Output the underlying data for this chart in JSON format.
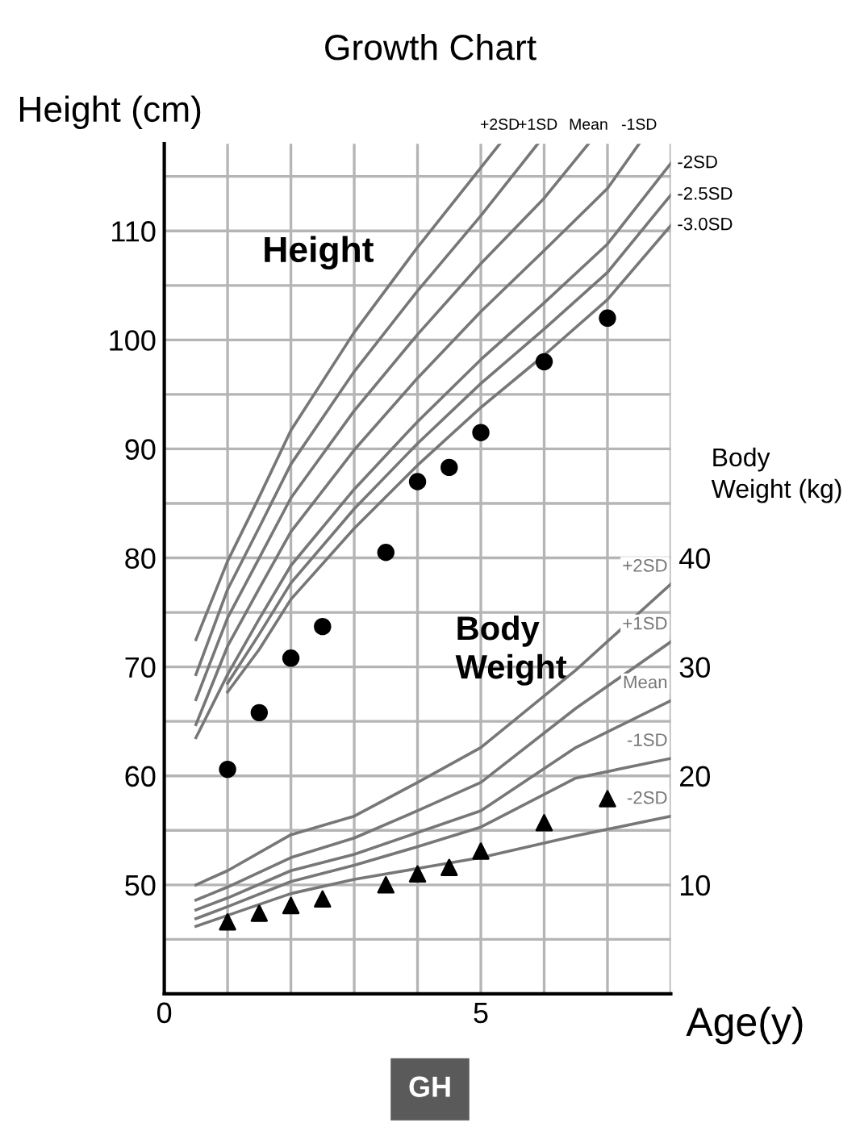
{
  "chart_data": {
    "type": "line",
    "title": "Growth Chart",
    "xlabel": "Age(y)",
    "ylabel": "Height (cm)",
    "y2label": "Body Weight (kg)",
    "annotations": [
      "Height",
      "Body Weight",
      "GH"
    ],
    "xlim": [
      0,
      8
    ],
    "xticks": [
      0,
      {
        "value": 1,
        "label": null
      },
      {
        "value": 2,
        "label": null
      },
      {
        "value": 3,
        "label": null
      },
      {
        "value": 4,
        "label": null
      },
      5,
      {
        "value": 6,
        "label": null
      },
      {
        "value": 7,
        "label": null
      },
      {
        "value": 8,
        "label": null
      }
    ],
    "ylim": [
      40,
      118
    ],
    "yticks": [
      {
        "value": 45,
        "label": null
      },
      50,
      {
        "value": 55,
        "label": null
      },
      60,
      {
        "value": 65,
        "label": null
      },
      70,
      {
        "value": 75,
        "label": null
      },
      80,
      {
        "value": 85,
        "label": null
      },
      90,
      {
        "value": 95,
        "label": null
      },
      100,
      {
        "value": 105,
        "label": null
      },
      110,
      {
        "value": 115,
        "label": null
      }
    ],
    "y2lim": [
      0,
      78
    ],
    "y2ticks": [
      10,
      20,
      30,
      40
    ],
    "grid": true,
    "series": [
      {
        "name": "+2SD",
        "color": "#777777",
        "x": [
          0.5,
          1,
          1.5,
          2,
          3,
          4,
          5,
          5.3
        ],
        "values": [
          72.5,
          79.7,
          85.6,
          91.7,
          100.7,
          108.5,
          115.8,
          118
        ]
      },
      {
        "name": "+1SD",
        "color": "#777777",
        "x": [
          0.5,
          1,
          1.5,
          2,
          3,
          4,
          5,
          5.9
        ],
        "values": [
          69.3,
          77.1,
          82.8,
          88.6,
          97.1,
          104.5,
          111.4,
          118
        ]
      },
      {
        "name": "Mean",
        "color": "#777777",
        "x": [
          0.5,
          1,
          1.5,
          2,
          3,
          4,
          5,
          6,
          6.7
        ],
        "values": [
          67,
          74.5,
          80,
          85.5,
          93.5,
          100.5,
          107,
          113,
          118
        ]
      },
      {
        "name": "-1SD",
        "color": "#777777",
        "x": [
          0.5,
          1,
          1.5,
          2,
          3,
          4,
          5,
          6,
          7,
          7.5
        ],
        "values": [
          64.7,
          71.9,
          77.2,
          82.4,
          89.9,
          96.5,
          102.6,
          108.2,
          113.9,
          118
        ]
      },
      {
        "name": "-2SD",
        "color": "#777777",
        "x": [
          0.5,
          1,
          1.5,
          2,
          3,
          4,
          5,
          6,
          7,
          8
        ],
        "values": [
          63.5,
          69.3,
          74.4,
          79.3,
          86.3,
          92.5,
          98.2,
          103.4,
          108.8,
          116.2
        ]
      },
      {
        "name": "-2.5SD",
        "color": "#777777",
        "x": [
          1,
          1.5,
          2,
          3,
          4,
          5,
          6,
          7,
          8
        ],
        "values": [
          68.5,
          73,
          77.7,
          84.5,
          90.5,
          96,
          101,
          106.2,
          113.3
        ]
      },
      {
        "name": "-3.0SD",
        "color": "#777777",
        "x": [
          1,
          1.5,
          2,
          3,
          4,
          5,
          6,
          7,
          8
        ],
        "values": [
          67.7,
          71.6,
          76.2,
          82.7,
          88.5,
          93.8,
          98.6,
          103.7,
          110.5
        ]
      },
      {
        "name": "+2SD",
        "color": "#777777",
        "axis": "y2",
        "x": [
          0.5,
          1,
          2,
          3,
          4,
          5,
          6.5,
          8
        ],
        "values": [
          10,
          11.3,
          14.6,
          16.3,
          19.4,
          22.6,
          29.7,
          37.6
        ]
      },
      {
        "name": "+1SD",
        "color": "#777777",
        "axis": "y2",
        "x": [
          0.5,
          1,
          2,
          3,
          4,
          5,
          6.5,
          8
        ],
        "values": [
          8.6,
          9.8,
          12.5,
          14.3,
          16.8,
          19.4,
          26.2,
          32.3
        ]
      },
      {
        "name": "Mean",
        "color": "#777777",
        "axis": "y2",
        "x": [
          0.5,
          1,
          2,
          3,
          4,
          5,
          6.5,
          8
        ],
        "values": [
          7.7,
          8.8,
          11.3,
          12.8,
          14.8,
          16.8,
          22.6,
          26.9
        ]
      },
      {
        "name": "-1SD",
        "color": "#777777",
        "axis": "y2",
        "x": [
          0.5,
          1,
          2,
          3,
          4,
          5,
          6.5,
          8
        ],
        "values": [
          6.9,
          8,
          10.3,
          11.8,
          13.5,
          15.3,
          19.8,
          21.6
        ]
      },
      {
        "name": "-2SD",
        "color": "#777777",
        "axis": "y2",
        "x": [
          0.5,
          1,
          2,
          3,
          4,
          5,
          6.5,
          8
        ],
        "values": [
          6.2,
          7.2,
          9.2,
          10.5,
          11.5,
          12.5,
          14.5,
          16.3
        ]
      },
      {
        "type": "scatter",
        "color": "#000000",
        "marker": "circle",
        "x": [
          1,
          1.5,
          2,
          2.5,
          3.5,
          4,
          4.5,
          5,
          6,
          7
        ],
        "values": [
          60.6,
          65.8,
          70.8,
          73.7,
          80.5,
          87,
          88.3,
          91.5,
          98,
          102
        ]
      },
      {
        "type": "scatter",
        "color": "#000000",
        "marker": "triangle",
        "axis": "y2",
        "x": [
          1,
          1.5,
          2,
          2.5,
          3.5,
          4,
          4.5,
          5,
          6,
          7
        ],
        "values": [
          6.6,
          7.4,
          8.1,
          8.7,
          10,
          11,
          11.6,
          13.1,
          15.7,
          17.9
        ]
      }
    ]
  }
}
